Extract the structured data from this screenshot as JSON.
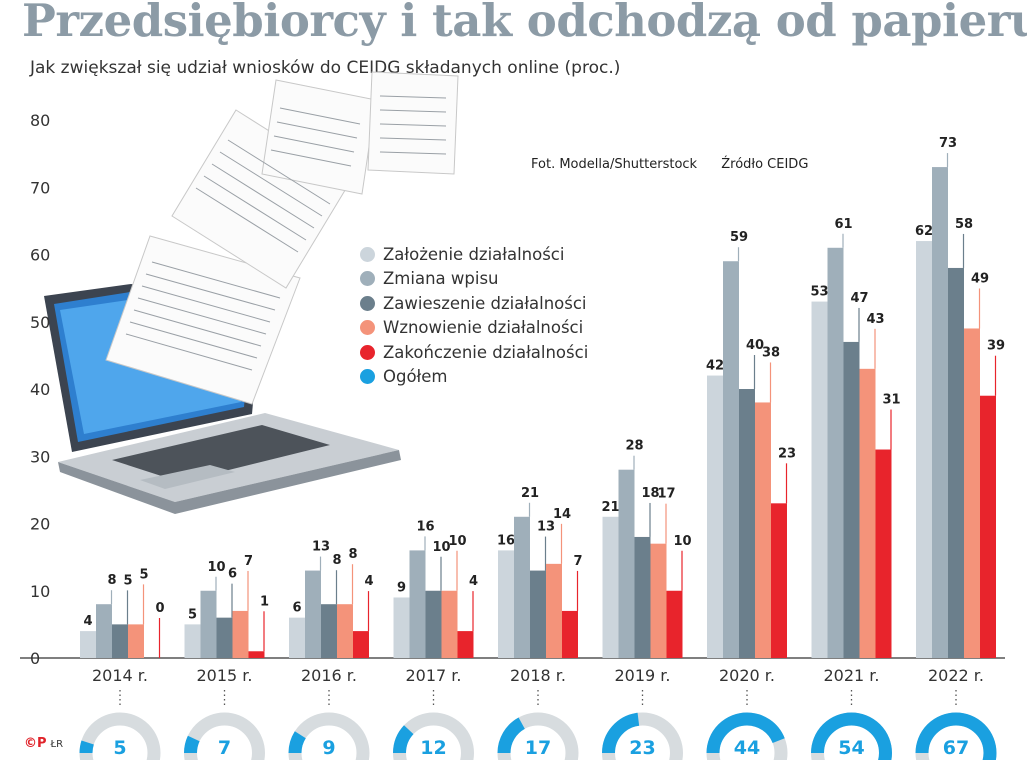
{
  "header": {
    "title": "Przedsiębiorcy i tak odchodzą od papieru",
    "subtitle": "Jak zwiększał się udział wniosków do CEIDG składanych online (proc.)",
    "photo_credit": "Fot. Modella/Shutterstock",
    "source": "Źródło CEIDG"
  },
  "logo": {
    "mark": "©P",
    "initials": "ŁR"
  },
  "colors": {
    "zalozenie": "#ccd5dc",
    "zmiana": "#9fafba",
    "zawieszenie": "#6b7f8c",
    "wznowienie": "#f4937a",
    "zakonczenie": "#e8242c",
    "ogolem": "#1aa0e0",
    "title": "#8c9ba6"
  },
  "chart_data": {
    "type": "bar",
    "categories": [
      "2014 r.",
      "2015 r.",
      "2016 r.",
      "2017 r.",
      "2018 r.",
      "2019 r.",
      "2020 r.",
      "2021 r.",
      "2022 r."
    ],
    "series": [
      {
        "name": "Założenie  działalności",
        "color": "#ccd5dc",
        "values": [
          4,
          5,
          6,
          9,
          16,
          21,
          42,
          53,
          62
        ]
      },
      {
        "name": "Zmiana wpisu",
        "color": "#9fafba",
        "values": [
          8,
          10,
          13,
          16,
          21,
          28,
          59,
          61,
          73
        ]
      },
      {
        "name": "Zawieszenie działalności",
        "color": "#6b7f8c",
        "values": [
          5,
          6,
          8,
          10,
          13,
          18,
          40,
          47,
          58
        ]
      },
      {
        "name": "Wznowienie  działalności",
        "color": "#f4937a",
        "values": [
          5,
          7,
          8,
          10,
          14,
          17,
          38,
          43,
          49
        ]
      },
      {
        "name": "Zakończenie działalności",
        "color": "#e8242c",
        "values": [
          0,
          1,
          4,
          4,
          7,
          10,
          23,
          31,
          39
        ]
      }
    ],
    "ogolem": {
      "name": "Ogółem",
      "color": "#1aa0e0",
      "values": [
        5,
        7,
        9,
        12,
        17,
        23,
        44,
        54,
        67
      ]
    },
    "y_ticks": [
      0,
      10,
      20,
      30,
      40,
      50,
      60,
      70,
      80
    ],
    "ylim": [
      0,
      80
    ],
    "grid": false,
    "legend": "center-left"
  }
}
